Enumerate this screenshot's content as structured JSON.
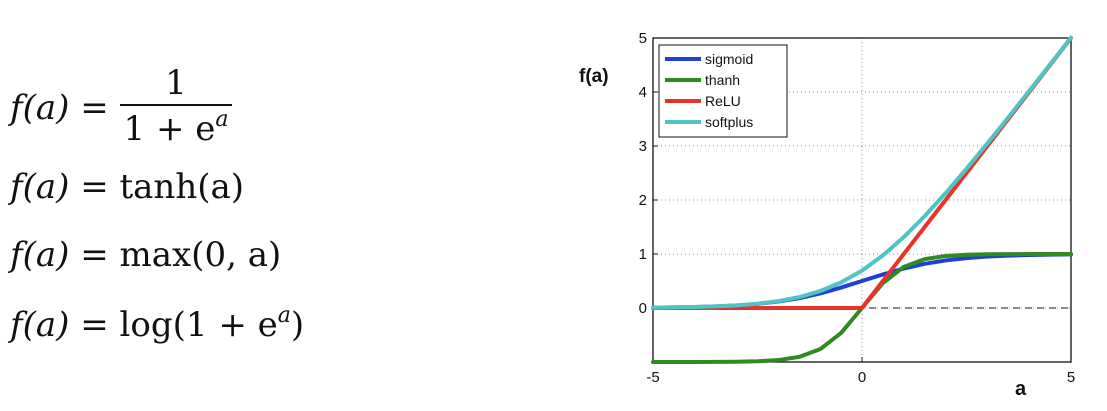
{
  "equations": [
    {
      "lhs": "f(a) =",
      "numerator": "1",
      "den_base": "1 + e",
      "den_exp": "a"
    },
    {
      "lhs": "f(a) =",
      "rhs": "tanh(a)"
    },
    {
      "lhs": "f(a) =",
      "rhs": "max(0, a)"
    },
    {
      "lhs": "f(a) =",
      "rhs_pre": "log(1 + e",
      "rhs_exp": "a",
      "rhs_post": ")"
    }
  ],
  "chart_data": {
    "type": "line",
    "title": "",
    "xlabel": "a",
    "ylabel": "f(a)",
    "xlim": [
      -5,
      5
    ],
    "ylim": [
      -1,
      5
    ],
    "xticks": [
      -5,
      0,
      5
    ],
    "yticks": [
      0,
      1,
      2,
      3,
      4,
      5
    ],
    "grid": true,
    "legend": "top-left",
    "reference_line_y": 0,
    "series": [
      {
        "name": "sigmoid",
        "color": "#1f3fd6",
        "x": [
          -5,
          -4.5,
          -4,
          -3.5,
          -3,
          -2.5,
          -2,
          -1.5,
          -1,
          -0.5,
          0,
          0.5,
          1,
          1.5,
          2,
          2.5,
          3,
          3.5,
          4,
          4.5,
          5
        ],
        "y": [
          0.007,
          0.011,
          0.018,
          0.029,
          0.047,
          0.076,
          0.119,
          0.182,
          0.269,
          0.378,
          0.5,
          0.622,
          0.731,
          0.818,
          0.881,
          0.924,
          0.953,
          0.971,
          0.982,
          0.989,
          0.993
        ]
      },
      {
        "name": "thanh",
        "color": "#2e8b1e",
        "x": [
          -5,
          -4.5,
          -4,
          -3.5,
          -3,
          -2.5,
          -2,
          -1.5,
          -1,
          -0.5,
          0,
          0.5,
          1,
          1.5,
          2,
          2.5,
          3,
          3.5,
          4,
          4.5,
          5
        ],
        "y": [
          -1,
          -1,
          -0.999,
          -0.998,
          -0.995,
          -0.987,
          -0.964,
          -0.905,
          -0.762,
          -0.462,
          0,
          0.462,
          0.762,
          0.905,
          0.964,
          0.987,
          0.995,
          0.998,
          0.999,
          1,
          1
        ]
      },
      {
        "name": "ReLU",
        "color": "#e8332c",
        "x": [
          -5,
          0,
          5
        ],
        "y": [
          0,
          0,
          5
        ]
      },
      {
        "name": "softplus",
        "color": "#4fc4c4",
        "x": [
          -5,
          -4.5,
          -4,
          -3.5,
          -3,
          -2.5,
          -2,
          -1.5,
          -1,
          -0.5,
          0,
          0.5,
          1,
          1.5,
          2,
          2.5,
          3,
          3.5,
          4,
          4.5,
          5
        ],
        "y": [
          0.007,
          0.011,
          0.018,
          0.03,
          0.049,
          0.079,
          0.127,
          0.201,
          0.313,
          0.474,
          0.693,
          0.974,
          1.313,
          1.701,
          2.127,
          2.579,
          3.049,
          3.53,
          4.018,
          4.511,
          5.007
        ]
      }
    ]
  }
}
